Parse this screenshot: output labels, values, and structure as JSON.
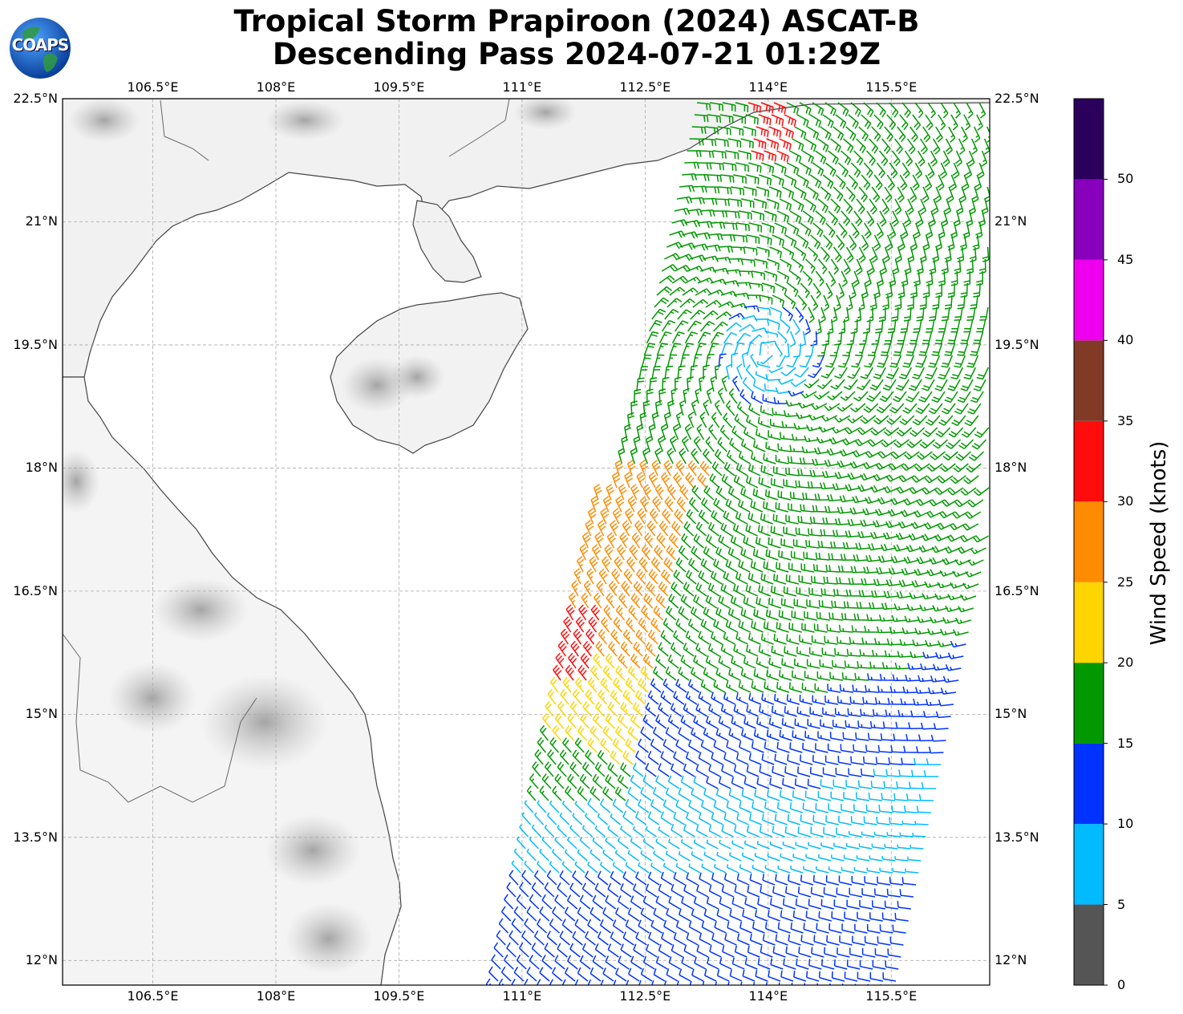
{
  "title_line1": "Tropical Storm Prapiroon (2024) ASCAT-B",
  "title_line2": "Descending Pass 2024-07-21 01:29Z",
  "logo_text": "COAPS",
  "lon_ticks": [
    "106.5°E",
    "108°E",
    "109.5°E",
    "111°E",
    "112.5°E",
    "114°E",
    "115.5°E"
  ],
  "lat_ticks": [
    "22.5°N",
    "21°N",
    "19.5°N",
    "18°N",
    "16.5°N",
    "15°N",
    "13.5°N",
    "12°N"
  ],
  "map_extent": {
    "lon_min": 105.4,
    "lon_max": 116.7,
    "lat_min": 11.7,
    "lat_max": 22.5
  },
  "colorbar": {
    "label": "Wind Speed (knots)",
    "bins": [
      {
        "min": 0,
        "max": 5,
        "color": "#555555"
      },
      {
        "min": 5,
        "max": 10,
        "color": "#00bbff"
      },
      {
        "min": 10,
        "max": 15,
        "color": "#0033ff"
      },
      {
        "min": 15,
        "max": 20,
        "color": "#009900"
      },
      {
        "min": 20,
        "max": 25,
        "color": "#ffd500"
      },
      {
        "min": 25,
        "max": 30,
        "color": "#ff8c00"
      },
      {
        "min": 30,
        "max": 35,
        "color": "#ff0d0d"
      },
      {
        "min": 35,
        "max": 40,
        "color": "#803a26"
      },
      {
        "min": 40,
        "max": 45,
        "color": "#ee00ee"
      },
      {
        "min": 45,
        "max": 50,
        "color": "#8800bb"
      },
      {
        "min": 50,
        "max": 55,
        "color": "#2b005c"
      }
    ],
    "tick_labels": [
      "0",
      "5",
      "10",
      "15",
      "20",
      "25",
      "30",
      "35",
      "40",
      "45",
      "50"
    ]
  },
  "wind_center": {
    "lon": 114.0,
    "lat": 19.4
  }
}
